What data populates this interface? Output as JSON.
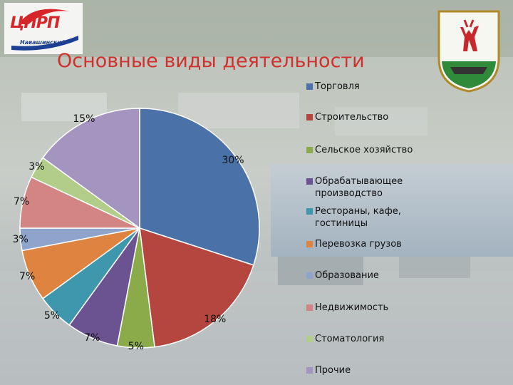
{
  "title": "Основные виды деятельности",
  "logo": {
    "line1": "ЦПРП",
    "line2": "Навашинский"
  },
  "colors": {
    "title": "#d0302e",
    "logo_red": "#d6262a",
    "logo_blue": "#1d3f93"
  },
  "chart_data": {
    "type": "pie",
    "title": "Основные виды деятельности",
    "legend_position": "right",
    "slices": [
      {
        "label": "Торговля",
        "value": 30,
        "value_label": "30%",
        "color": "#4a72a8"
      },
      {
        "label": "Строительство",
        "value": 18,
        "value_label": "18%",
        "color": "#b4463f"
      },
      {
        "label": "Сельское хозяйство",
        "value": 5,
        "value_label": "5%",
        "color": "#8bab4b"
      },
      {
        "label": "Обрабатывающее производство",
        "value": 7,
        "value_label": "7%",
        "color": "#6b5392"
      },
      {
        "label": "Рестораны, кафе, гостиницы",
        "value": 5,
        "value_label": "5%",
        "color": "#3f97ad"
      },
      {
        "label": "Перевозка грузов",
        "value": 7,
        "value_label": "7%",
        "color": "#de8340"
      },
      {
        "label": "Образование",
        "value": 3,
        "value_label": "3%",
        "color": "#8fa4cc"
      },
      {
        "label": "Недвижимость",
        "value": 7,
        "value_label": "7%",
        "color": "#d28582"
      },
      {
        "label": "Стоматология",
        "value": 3,
        "value_label": "3%",
        "color": "#b2cc8a"
      },
      {
        "label": "Прочие",
        "value": 15,
        "value_label": "15%",
        "color": "#a394c0"
      }
    ]
  }
}
